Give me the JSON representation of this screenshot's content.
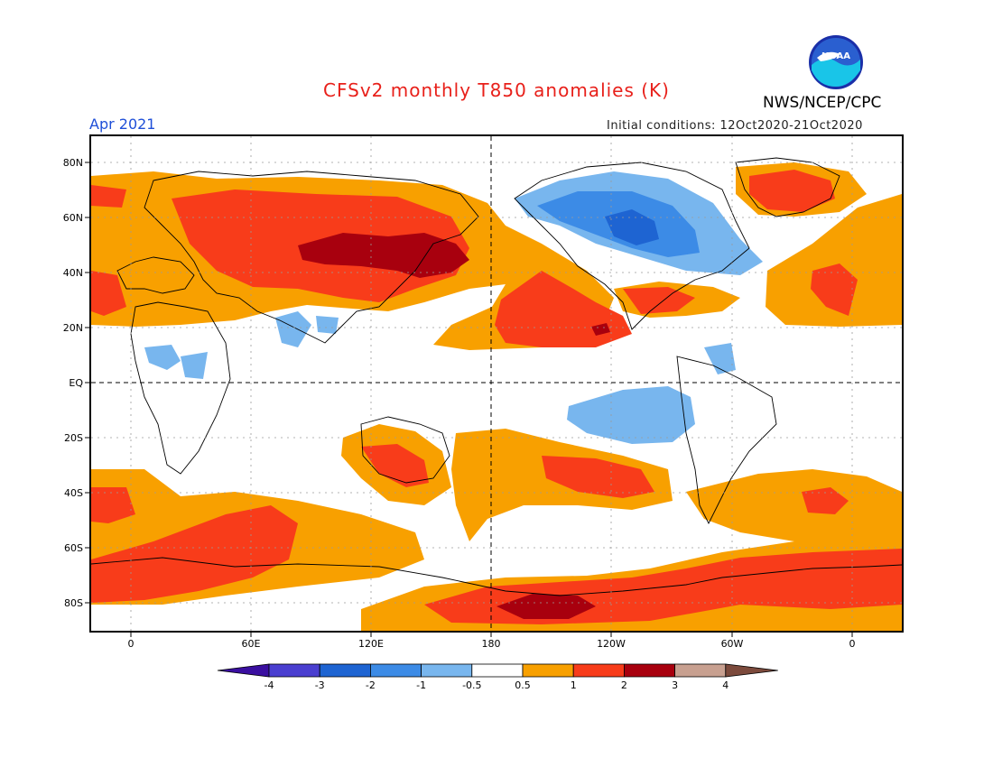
{
  "header": {
    "title": "CFSv2 monthly T850 anomalies (K)",
    "agency": "NWS/NCEP/CPC",
    "month": "Apr 2021",
    "initial_conditions": "Initial conditions: 12Oct2020-21Oct2020",
    "logo_text": "NOAA"
  },
  "axes": {
    "lat_labels": [
      "80N",
      "60N",
      "40N",
      "20N",
      "EQ",
      "20S",
      "40S",
      "60S",
      "80S"
    ],
    "lon_labels": [
      "0",
      "60E",
      "120E",
      "180",
      "120W",
      "60W",
      "0"
    ]
  },
  "legend": {
    "labels": [
      "-4",
      "-3",
      "-2",
      "-1",
      "-0.5",
      "0.5",
      "1",
      "2",
      "3",
      "4"
    ],
    "colors": [
      "#3a0fa0",
      "#4a3fd0",
      "#1e64d2",
      "#3c8be6",
      "#78b6ee",
      "#ffffff",
      "#f8a000",
      "#f83c1a",
      "#a8000e",
      "#c8a090",
      "#7c4a3c"
    ]
  },
  "colors": {
    "orange": "#f8a000",
    "red": "#f83c1a",
    "darkred": "#a8000e",
    "lightblue": "#78b6ee",
    "blue": "#3c8be6",
    "darkblue": "#1e64d2",
    "title": "#e8201a",
    "month": "#1f4fd8"
  }
}
